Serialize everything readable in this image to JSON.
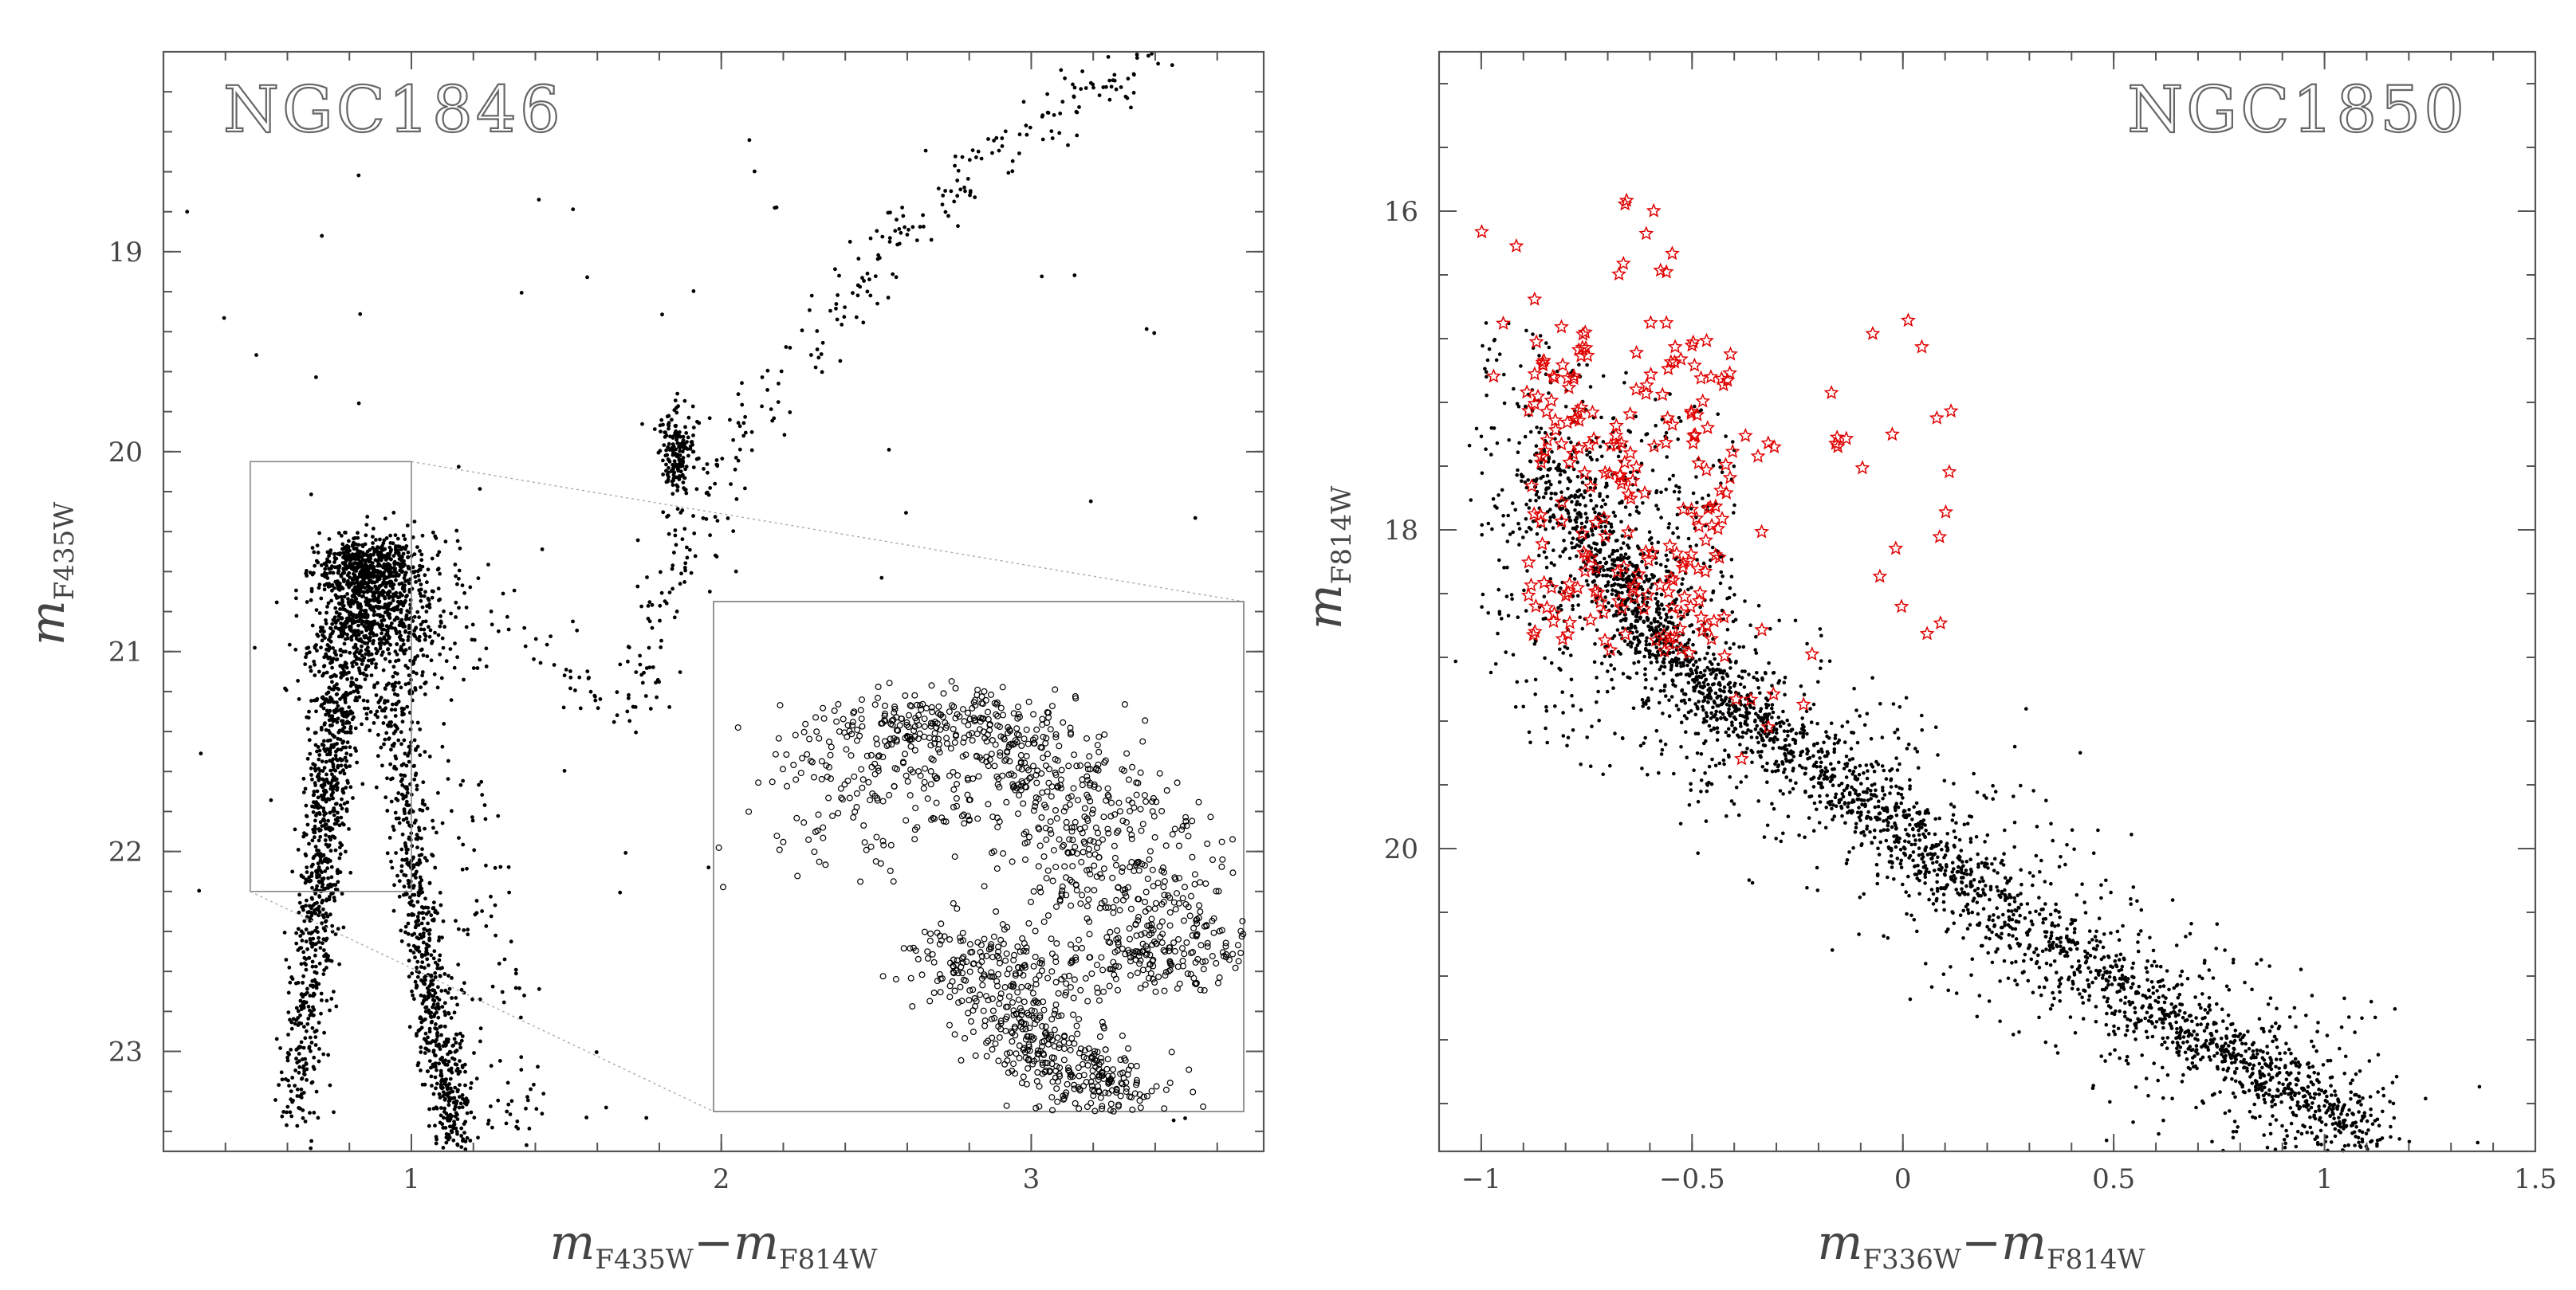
{
  "chart_data": [
    {
      "type": "scatter",
      "title": "NGC1846",
      "xlabel": {
        "base": "m",
        "sub1": "F435W",
        "minus": "−",
        "base2": "m",
        "sub2": "F814W"
      },
      "ylabel": {
        "base": "m",
        "sub": "F435W"
      },
      "xlim": [
        0.2,
        3.75
      ],
      "ylim": [
        23.5,
        18.0
      ],
      "y_inverted": true,
      "xticks": [
        1,
        2,
        3
      ],
      "xtick_labels": [
        "1",
        "2",
        "3"
      ],
      "yticks": [
        19,
        20,
        21,
        22,
        23
      ],
      "ytick_labels": [
        "19",
        "20",
        "21",
        "22",
        "23"
      ],
      "grid": false,
      "marker_color": "#000000",
      "series": [
        {
          "component": "main-sequence-turnoff",
          "points": [
            [
              0.62,
              23.4
            ],
            [
              0.66,
              22.9
            ],
            [
              0.68,
              22.5
            ],
            [
              0.7,
              22.2
            ],
            [
              0.72,
              21.9
            ],
            [
              0.74,
              21.6
            ],
            [
              0.76,
              21.3
            ],
            [
              0.78,
              21.0
            ],
            [
              0.8,
              20.8
            ],
            [
              0.82,
              20.6
            ],
            [
              0.85,
              20.5
            ],
            [
              0.88,
              20.6
            ],
            [
              0.9,
              20.8
            ],
            [
              0.92,
              21.0
            ],
            [
              1.0,
              22.0
            ],
            [
              1.05,
              22.6
            ],
            [
              1.1,
              23.1
            ],
            [
              1.15,
              23.45
            ]
          ]
        },
        {
          "component": "red-clump",
          "points": [
            [
              1.83,
              19.9
            ],
            [
              1.85,
              20.0
            ],
            [
              1.86,
              20.1
            ],
            [
              1.87,
              19.95
            ],
            [
              1.84,
              20.05
            ],
            [
              1.88,
              20.0
            ]
          ]
        },
        {
          "component": "red-giant-branch",
          "points": [
            [
              1.7,
              21.3
            ],
            [
              1.78,
              20.9
            ],
            [
              1.85,
              20.6
            ],
            [
              1.95,
              20.3
            ],
            [
              2.05,
              20.0
            ],
            [
              2.2,
              19.6
            ],
            [
              2.4,
              19.2
            ],
            [
              2.6,
              18.9
            ],
            [
              2.8,
              18.6
            ],
            [
              3.0,
              18.4
            ],
            [
              3.2,
              18.2
            ],
            [
              3.4,
              18.0
            ]
          ]
        }
      ],
      "zoom_region": {
        "xlim": [
          0.48,
          1.0
        ],
        "ylim": [
          20.05,
          22.2
        ]
      },
      "inset": {
        "type": "scatter",
        "marker": "open-circle",
        "points": [
          [
            0.62,
            21.2
          ],
          [
            0.65,
            20.7
          ],
          [
            0.7,
            20.5
          ],
          [
            0.75,
            20.6
          ],
          [
            0.8,
            20.8
          ],
          [
            0.85,
            21.0
          ],
          [
            0.9,
            21.3
          ],
          [
            0.95,
            21.6
          ],
          [
            0.72,
            21.5
          ],
          [
            0.78,
            21.8
          ],
          [
            0.82,
            22.0
          ],
          [
            0.88,
            22.15
          ]
        ]
      }
    },
    {
      "type": "scatter",
      "title": "NGC1850",
      "xlabel": {
        "base": "m",
        "sub1": "F336W",
        "minus": "−",
        "base2": "m",
        "sub2": "F814W"
      },
      "ylabel": {
        "base": "m",
        "sub": "F814W"
      },
      "xlim": [
        -1.1,
        1.5
      ],
      "ylim": [
        21.9,
        15.0
      ],
      "y_inverted": true,
      "xticks": [
        -1,
        -0.5,
        0,
        0.5,
        1,
        1.5
      ],
      "xtick_labels": [
        "−1",
        "−0.5",
        "0",
        "0.5",
        "1",
        "1.5"
      ],
      "yticks": [
        16,
        18,
        20
      ],
      "ytick_labels": [
        "16",
        "18",
        "20"
      ],
      "grid": false,
      "series": [
        {
          "component": "main-sequence",
          "color": "#000000",
          "marker": "dot",
          "points": [
            [
              -0.85,
              17.5
            ],
            [
              -0.7,
              18.2
            ],
            [
              -0.6,
              18.6
            ],
            [
              -0.45,
              19.0
            ],
            [
              -0.3,
              19.3
            ],
            [
              -0.1,
              19.7
            ],
            [
              0.1,
              20.1
            ],
            [
              0.3,
              20.5
            ],
            [
              0.5,
              20.8
            ],
            [
              0.7,
              21.2
            ],
            [
              0.9,
              21.5
            ],
            [
              1.1,
              21.8
            ]
          ]
        },
        {
          "component": "be-stars",
          "color": "#e00000",
          "marker": "open-star",
          "points": [
            [
              -0.9,
              16.6
            ],
            [
              -0.8,
              17.0
            ],
            [
              -0.7,
              16.5
            ],
            [
              -0.6,
              16.2
            ],
            [
              -0.5,
              17.2
            ],
            [
              -0.4,
              17.6
            ],
            [
              -0.3,
              17.4
            ],
            [
              -0.2,
              17.2
            ],
            [
              -0.1,
              17.3
            ],
            [
              0.0,
              17.0
            ],
            [
              0.05,
              17.5
            ],
            [
              -0.02,
              18.5
            ],
            [
              -0.3,
              19.1
            ]
          ]
        }
      ]
    }
  ]
}
